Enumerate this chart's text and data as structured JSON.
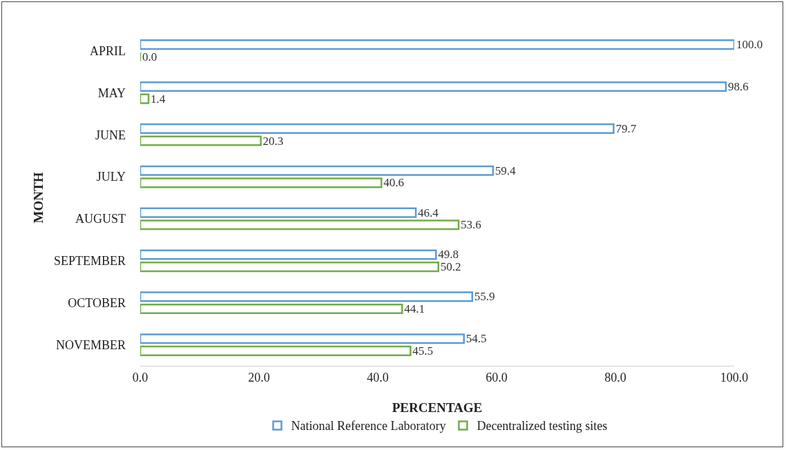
{
  "chart_data": {
    "type": "bar",
    "orientation": "horizontal",
    "xlabel": "PERCENTAGE",
    "ylabel": "MONTH",
    "categories": [
      "APRIL",
      "MAY",
      "JUNE",
      "JULY",
      "AUGUST",
      "SEPTEMBER",
      "OCTOBER",
      "NOVEMBER"
    ],
    "series": [
      {
        "name": "National Reference Laboratory",
        "color": "#5b9bd5",
        "values": [
          100.0,
          98.6,
          79.7,
          59.4,
          46.4,
          49.8,
          55.9,
          54.5
        ],
        "value_labels": [
          "100.0",
          "98.6",
          "79.7",
          "59.4",
          "46.4",
          "49.8",
          "55.9",
          "54.5"
        ]
      },
      {
        "name": "Decentralized testing sites",
        "color": "#70ad47",
        "values": [
          0.0,
          1.4,
          20.3,
          40.6,
          53.6,
          50.2,
          44.1,
          45.5
        ],
        "value_labels": [
          "0.0",
          "1.4",
          "20.3",
          "40.6",
          "53.6",
          "50.2",
          "44.1",
          "45.5"
        ]
      }
    ],
    "xlim": [
      0,
      100
    ],
    "xticks": [
      {
        "value": 0,
        "label": "0.0"
      },
      {
        "value": 20,
        "label": "20.0"
      },
      {
        "value": 40,
        "label": "40.0"
      },
      {
        "value": 60,
        "label": "60.0"
      },
      {
        "value": 80,
        "label": "80.0"
      },
      {
        "value": 100,
        "label": "100.0"
      }
    ],
    "grid": false,
    "legend": "bottom"
  }
}
